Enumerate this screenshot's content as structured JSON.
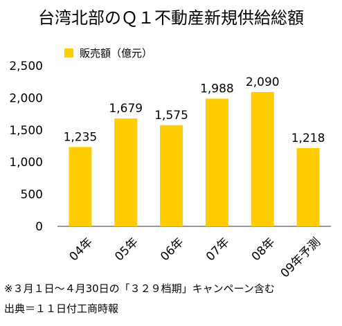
{
  "chart_data": {
    "type": "bar",
    "title": "台湾北部のＱ１不動産新規供給総額",
    "legend": {
      "label": "販売額（億元）",
      "position": "top-left"
    },
    "categories": [
      "04年",
      "05年",
      "06年",
      "07年",
      "08年",
      "09年予測"
    ],
    "series": [
      {
        "name": "販売額（億元）",
        "values": [
          1235,
          1679,
          1575,
          1988,
          2090,
          1218
        ]
      }
    ],
    "value_labels": [
      "1,235",
      "1,679",
      "1,575",
      "1,988",
      "2,090",
      "1,218"
    ],
    "ylim": [
      0,
      2500
    ],
    "yticks": [
      0,
      500,
      1000,
      1500,
      2000,
      2500
    ],
    "ytick_labels": [
      "0",
      "500",
      "1,000",
      "1,500",
      "2,000",
      "2,500"
    ],
    "grid": false,
    "bar_color": "#FFCC00"
  },
  "footnotes": {
    "note": "※３月１日～４月30日の「３２９档期」キャンペーン含む",
    "source": "出典＝１１日付工商時報"
  }
}
